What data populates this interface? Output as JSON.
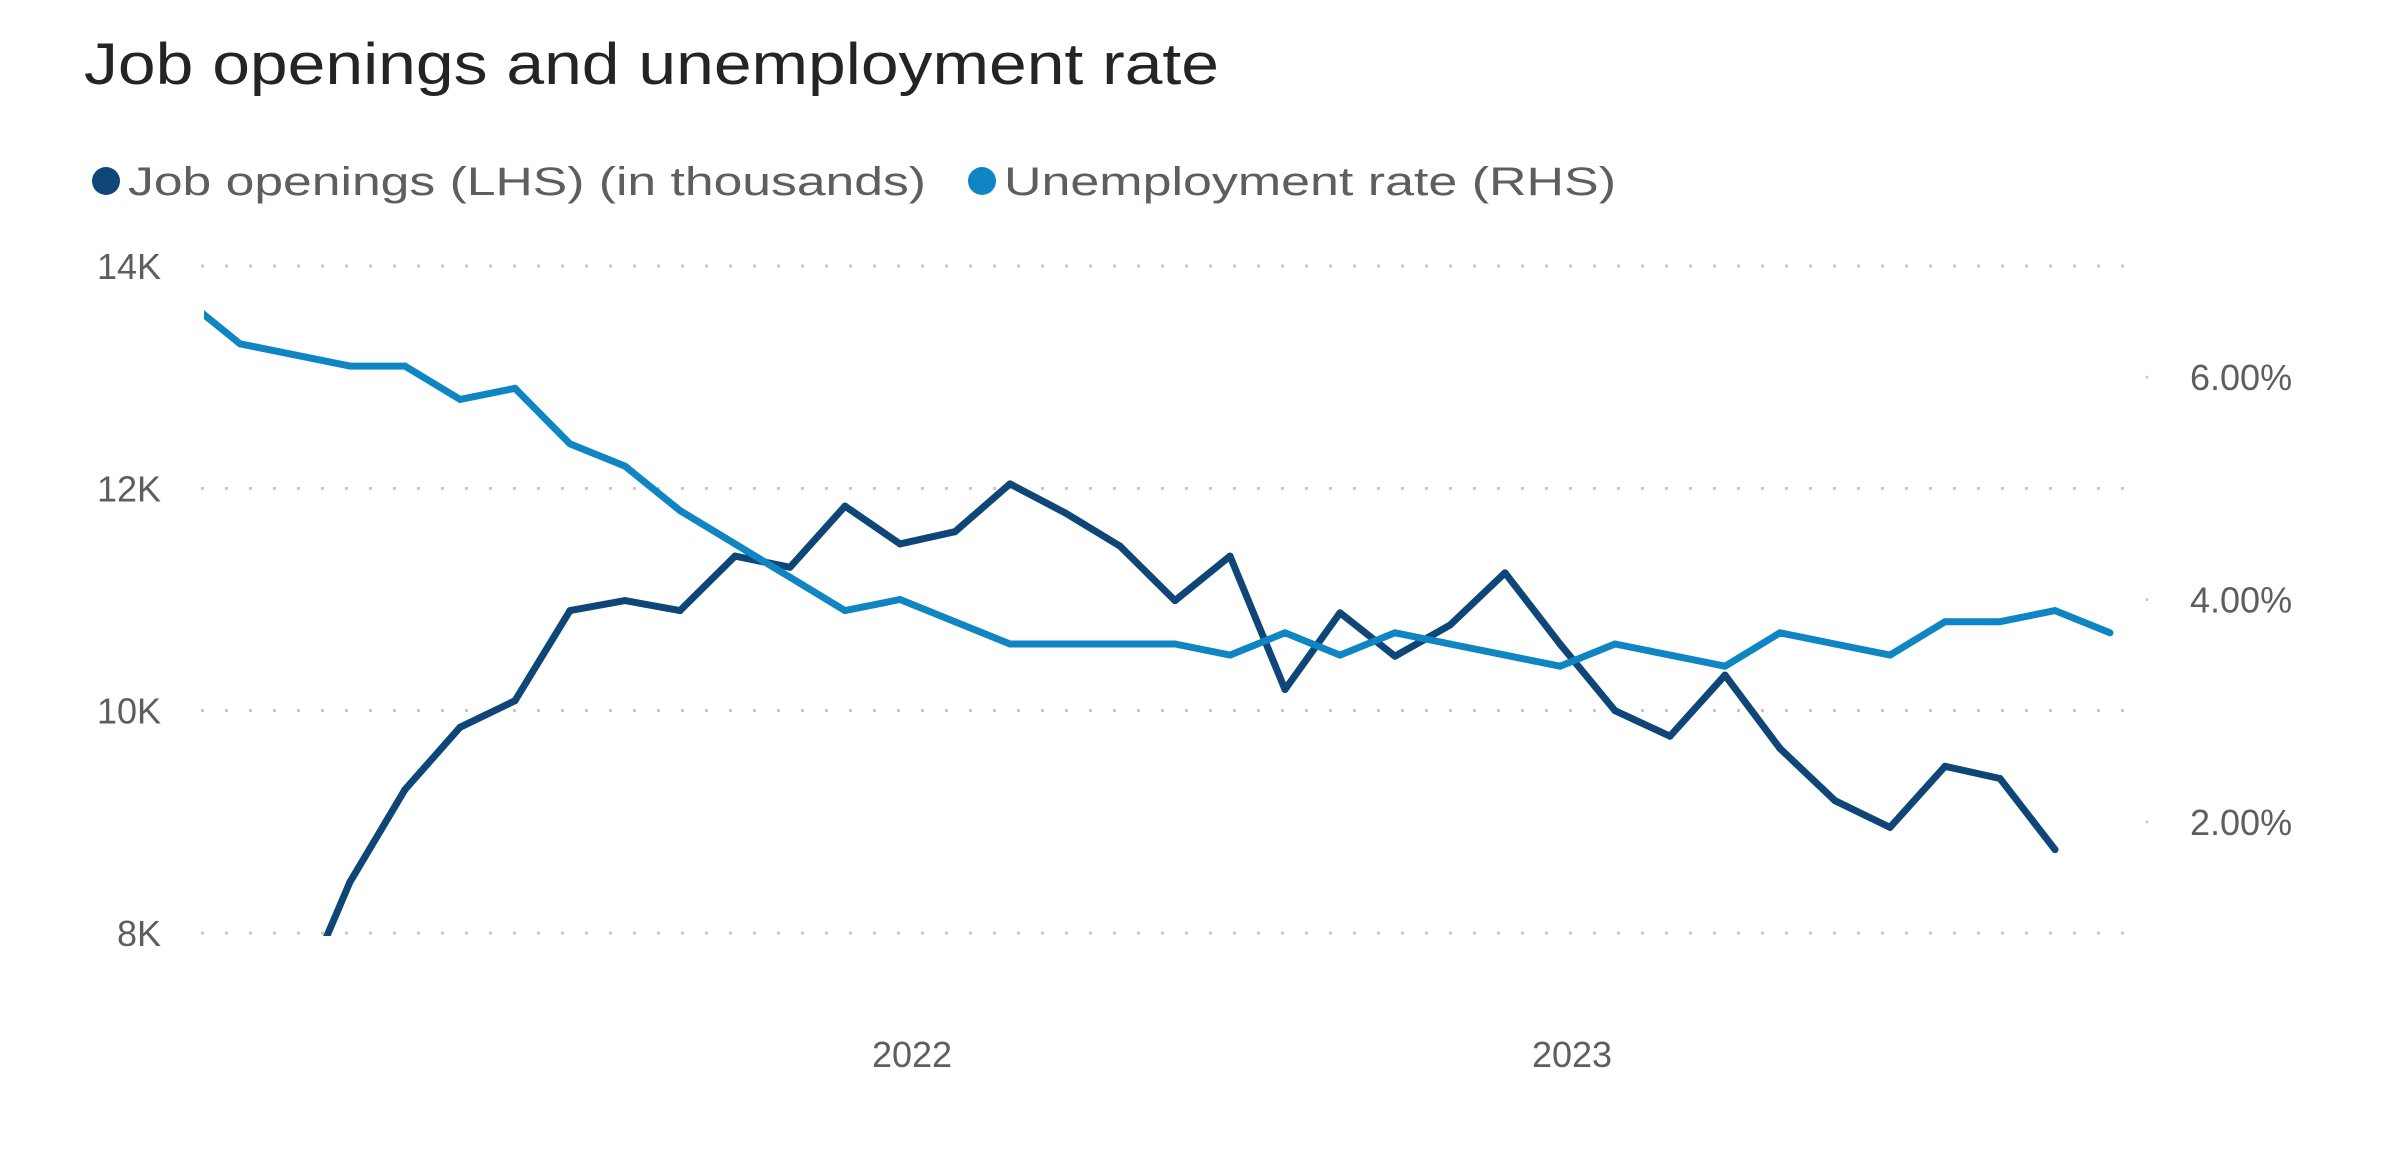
{
  "chart_data": {
    "type": "line",
    "title": "Job openings and unemployment rate",
    "legend_position": "top-left",
    "grid": true,
    "x": [
      "2020-12",
      "2021-01",
      "2021-02",
      "2021-03",
      "2021-04",
      "2021-05",
      "2021-06",
      "2021-07",
      "2021-08",
      "2021-09",
      "2021-10",
      "2021-11",
      "2021-12",
      "2022-01",
      "2022-02",
      "2022-03",
      "2022-04",
      "2022-05",
      "2022-06",
      "2022-07",
      "2022-08",
      "2022-09",
      "2022-10",
      "2022-11",
      "2022-12",
      "2023-01",
      "2023-02",
      "2023-03",
      "2023-04",
      "2023-05",
      "2023-06",
      "2023-07",
      "2023-08",
      "2023-09",
      "2023-10",
      "2023-11"
    ],
    "x_tick_labels": [
      "2022",
      "2023"
    ],
    "x_tick_values": [
      "2022-01",
      "2023-01"
    ],
    "y_left": {
      "range": [
        8000,
        14000
      ],
      "ticks": [
        8000,
        10000,
        12000,
        14000
      ],
      "tick_labels": [
        "8K",
        "10K",
        "12K",
        "14K"
      ]
    },
    "y_right": {
      "range": [
        1,
        7
      ],
      "ticks": [
        2,
        4,
        6
      ],
      "tick_labels": [
        "2.00%",
        "4.00%",
        "6.00%"
      ]
    },
    "series": [
      {
        "name": "Job openings (LHS) (in thousands)",
        "axis": "left",
        "color": "#0E4677",
        "values": [
          null,
          null,
          7300,
          8460,
          9290,
          9850,
          10090,
          10900,
          10990,
          10900,
          11390,
          11290,
          11840,
          11500,
          11610,
          12040,
          11780,
          11480,
          10990,
          11390,
          10190,
          10880,
          10490,
          10770,
          11240,
          10600,
          10000,
          9770,
          10320,
          9660,
          9190,
          8950,
          9500,
          9390,
          8750,
          null
        ]
      },
      {
        "name": "Unemployment rate (RHS)",
        "axis": "right",
        "color": "#0F86C3",
        "values": [
          6.7,
          6.3,
          6.2,
          6.1,
          6.1,
          5.8,
          5.9,
          5.4,
          5.2,
          4.8,
          4.5,
          4.2,
          3.9,
          4.0,
          3.8,
          3.6,
          3.6,
          3.6,
          3.6,
          3.5,
          3.7,
          3.5,
          3.7,
          3.6,
          3.5,
          3.4,
          3.6,
          3.5,
          3.4,
          3.7,
          3.6,
          3.5,
          3.8,
          3.8,
          3.9,
          3.7
        ]
      }
    ]
  }
}
